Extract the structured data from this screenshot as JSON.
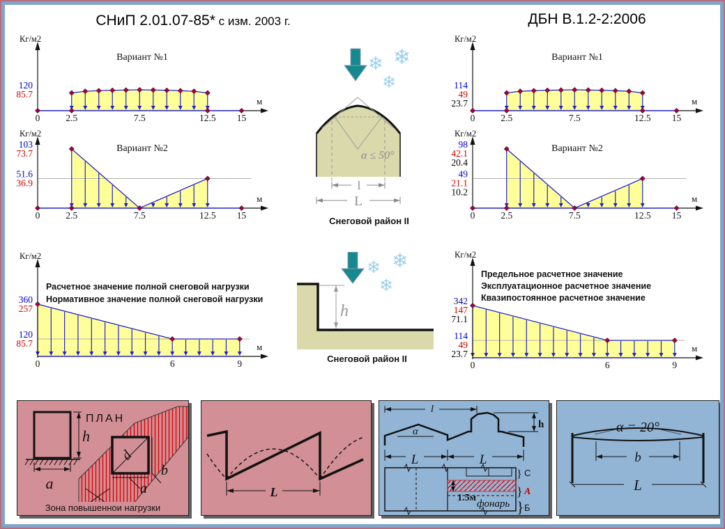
{
  "header": {
    "left_title": "СНиП 2.01.07-85*",
    "left_title_suffix": " с изм. 2003 г.",
    "right_title": "ДБН В.1.2-2:2006"
  },
  "colors": {
    "blue": "#0000cc",
    "red": "#cc0000",
    "black": "#000000",
    "load_fill": "#ffff99",
    "load_line": "#2222cc",
    "marker": "#aa0040",
    "gray_line": "#b0b0b0",
    "teal_arrow": "#15898f",
    "snowflake": "#9cd0ec",
    "building": "#d9d9ab",
    "panel_pink": "#d28f96",
    "panel_blue": "#93b5d5"
  },
  "chart_data": [
    {
      "type": "area",
      "id": "snip-variant1",
      "title": "Вариант №1",
      "ylabel": "Кг/м2",
      "xlabel": "м",
      "span_m": 15,
      "x_ticks": [
        {
          "m": 0,
          "label": "0"
        },
        {
          "m": 2.5,
          "label": "2.5"
        },
        {
          "m": 7.5,
          "label": "7.5"
        },
        {
          "m": 12.5,
          "label": "12.5"
        },
        {
          "m": 15,
          "label": "15"
        }
      ],
      "profile": [
        [
          2.5,
          0.85
        ],
        [
          3.5,
          0.93
        ],
        [
          5,
          0.97
        ],
        [
          7.5,
          1.0
        ],
        [
          10,
          0.97
        ],
        [
          11.5,
          0.93
        ],
        [
          12.5,
          0.85
        ]
      ],
      "arrows": {
        "from_m": 2.5,
        "to_m": 12.5,
        "count": 11
      },
      "markers_on_arrow_tops": true,
      "baseline_markers_m": [
        0,
        2.5,
        12.5,
        15
      ],
      "top_markers": [],
      "gray_line_level": null,
      "legend": [],
      "y_labels": [
        {
          "level": 1.0,
          "lines": [
            {
              "text": "120",
              "color": "#0000cc"
            },
            {
              "text": "85.7",
              "color": "#cc0000"
            }
          ]
        }
      ]
    },
    {
      "type": "area",
      "id": "snip-variant2",
      "title": "Вариант №2",
      "ylabel": "Кг/м2",
      "xlabel": "м",
      "span_m": 15,
      "x_ticks": [
        {
          "m": 0,
          "label": "0"
        },
        {
          "m": 2.5,
          "label": "2.5"
        },
        {
          "m": 7.5,
          "label": "7.5"
        },
        {
          "m": 12.5,
          "label": "12.5"
        },
        {
          "m": 15,
          "label": "15"
        }
      ],
      "profile": [
        [
          2.5,
          1.0
        ],
        [
          7.5,
          0.0
        ],
        [
          12.5,
          0.5
        ]
      ],
      "arrows": {
        "from_m": 2.5,
        "to_m": 12.5,
        "count": 11
      },
      "markers_on_arrow_tops": false,
      "baseline_markers_m": [
        0,
        2.5,
        7.5,
        15
      ],
      "top_markers": [
        [
          2.5,
          1.0
        ],
        [
          12.5,
          0.5
        ]
      ],
      "gray_line_level": 0.5,
      "legend": [],
      "y_labels": [
        {
          "level": 1.0,
          "lines": [
            {
              "text": "103",
              "color": "#0000cc"
            },
            {
              "text": "73.7",
              "color": "#cc0000"
            }
          ]
        },
        {
          "level": 0.5,
          "lines": [
            {
              "text": "51.6",
              "color": "#0000cc"
            },
            {
              "text": "36.9",
              "color": "#cc0000"
            }
          ]
        }
      ]
    },
    {
      "type": "area",
      "id": "snip-full-load",
      "title": "",
      "ylabel": "Кг/м2",
      "xlabel": "м",
      "span_m": 9,
      "x_ticks": [
        {
          "m": 0,
          "label": "0"
        },
        {
          "m": 6,
          "label": "6"
        },
        {
          "m": 9,
          "label": "9"
        }
      ],
      "profile": [
        [
          0,
          1.0
        ],
        [
          6,
          0.333
        ],
        [
          9,
          0.333
        ]
      ],
      "arrows": {
        "from_m": 0,
        "to_m": 9,
        "count": 16
      },
      "markers_on_arrow_tops": false,
      "baseline_markers_m": [],
      "top_markers": [
        [
          0,
          1.0
        ],
        [
          6,
          0.333
        ],
        [
          9,
          0.333
        ]
      ],
      "gray_line_level": 0.333,
      "legend": [
        "Расчетное значение полной снеговой нагрузки",
        "Нормативное значение полной снеговой нагрузки"
      ],
      "y_labels": [
        {
          "level": 1.0,
          "lines": [
            {
              "text": "360",
              "color": "#0000cc"
            },
            {
              "text": "257",
              "color": "#cc0000"
            }
          ]
        },
        {
          "level": 0.333,
          "lines": [
            {
              "text": "120",
              "color": "#0000cc"
            },
            {
              "text": "85.7",
              "color": "#cc0000"
            }
          ]
        }
      ]
    },
    {
      "type": "area",
      "id": "dbn-variant1",
      "title": "Вариант №1",
      "ylabel": "Кг/м2",
      "xlabel": "м",
      "span_m": 15,
      "x_ticks": [
        {
          "m": 0,
          "label": "0"
        },
        {
          "m": 2.5,
          "label": "2.5"
        },
        {
          "m": 7.5,
          "label": "7.5"
        },
        {
          "m": 12.5,
          "label": "12.5"
        },
        {
          "m": 15,
          "label": "15"
        }
      ],
      "profile": [
        [
          2.5,
          0.85
        ],
        [
          3.5,
          0.93
        ],
        [
          5,
          0.97
        ],
        [
          7.5,
          1.0
        ],
        [
          10,
          0.97
        ],
        [
          11.5,
          0.93
        ],
        [
          12.5,
          0.85
        ]
      ],
      "arrows": {
        "from_m": 2.5,
        "to_m": 12.5,
        "count": 11
      },
      "markers_on_arrow_tops": true,
      "baseline_markers_m": [
        0,
        2.5,
        12.5,
        15
      ],
      "top_markers": [],
      "gray_line_level": null,
      "legend": [],
      "y_labels": [
        {
          "level": 1.0,
          "lines": [
            {
              "text": "114",
              "color": "#0000cc"
            },
            {
              "text": "49",
              "color": "#cc0000"
            },
            {
              "text": "23.7",
              "color": "#000000"
            }
          ]
        }
      ]
    },
    {
      "type": "area",
      "id": "dbn-variant2",
      "title": "Вариант №2",
      "ylabel": "Кг/м2",
      "xlabel": "м",
      "span_m": 15,
      "x_ticks": [
        {
          "m": 0,
          "label": "0"
        },
        {
          "m": 2.5,
          "label": "2.5"
        },
        {
          "m": 7.5,
          "label": "7.5"
        },
        {
          "m": 12.5,
          "label": "12.5"
        },
        {
          "m": 15,
          "label": "15"
        }
      ],
      "profile": [
        [
          2.5,
          1.0
        ],
        [
          7.5,
          0.0
        ],
        [
          12.5,
          0.5
        ]
      ],
      "arrows": {
        "from_m": 2.5,
        "to_m": 12.5,
        "count": 11
      },
      "markers_on_arrow_tops": false,
      "baseline_markers_m": [
        0,
        2.5,
        7.5,
        15
      ],
      "top_markers": [
        [
          2.5,
          1.0
        ],
        [
          12.5,
          0.5
        ]
      ],
      "gray_line_level": 0.5,
      "legend": [],
      "y_labels": [
        {
          "level": 1.0,
          "lines": [
            {
              "text": "98",
              "color": "#0000cc"
            },
            {
              "text": "42.1",
              "color": "#cc0000"
            },
            {
              "text": "20.4",
              "color": "#000000"
            }
          ]
        },
        {
          "level": 0.5,
          "lines": [
            {
              "text": "49",
              "color": "#0000cc"
            },
            {
              "text": "21.1",
              "color": "#cc0000"
            },
            {
              "text": "10.2",
              "color": "#000000"
            }
          ]
        }
      ]
    },
    {
      "type": "area",
      "id": "dbn-full-load",
      "title": "",
      "ylabel": "Кг/м2",
      "xlabel": "м",
      "span_m": 9,
      "x_ticks": [
        {
          "m": 0,
          "label": "0"
        },
        {
          "m": 6,
          "label": "6"
        },
        {
          "m": 9,
          "label": "9"
        }
      ],
      "profile": [
        [
          0,
          1.0
        ],
        [
          6,
          0.333
        ],
        [
          9,
          0.333
        ]
      ],
      "arrows": {
        "from_m": 0,
        "to_m": 9,
        "count": 16
      },
      "markers_on_arrow_tops": false,
      "baseline_markers_m": [],
      "top_markers": [
        [
          0,
          1.0
        ],
        [
          6,
          0.333
        ],
        [
          9,
          0.333
        ]
      ],
      "gray_line_level": 0.333,
      "legend": [
        "Предельное расчетное значение",
        "Эксплуатационное расчетное значение",
        "Квазипостоянное расчетное значение"
      ],
      "y_labels": [
        {
          "level": 1.0,
          "lines": [
            {
              "text": "342",
              "color": "#0000cc"
            },
            {
              "text": "147",
              "color": "#cc0000"
            },
            {
              "text": "71.1",
              "color": "#000000"
            }
          ]
        },
        {
          "level": 0.333,
          "lines": [
            {
              "text": "114",
              "color": "#0000cc"
            },
            {
              "text": "49",
              "color": "#cc0000"
            },
            {
              "text": "23.7",
              "color": "#000000"
            }
          ]
        }
      ]
    }
  ],
  "middle": {
    "top_figure": {
      "angle_label": "α ≤ 50°",
      "inner_dim": "l",
      "outer_dim": "L",
      "caption": "Снеговой район II"
    },
    "bottom_figure": {
      "height_dim": "h",
      "caption": "Снеговой район II"
    }
  },
  "panels": {
    "plan": {
      "title": "ПЛАН",
      "height_dim": "h",
      "width_dim": "a",
      "square_diag": "d",
      "square_b": "b",
      "square_a": "a",
      "caption": "Зона повышеннои нагрузки"
    },
    "sawtooth": {
      "span": "L"
    },
    "lantern": {
      "top_dim": "l",
      "angle": "α",
      "height": "h",
      "span1": "L",
      "span2": "L",
      "band_width": "1.5м",
      "lantern_label": "фонарь",
      "zone_c": "С",
      "zone_a": "А",
      "zone_b": "Б"
    },
    "arch": {
      "angle": "α = 20°",
      "inner": "b",
      "outer": "L"
    }
  }
}
